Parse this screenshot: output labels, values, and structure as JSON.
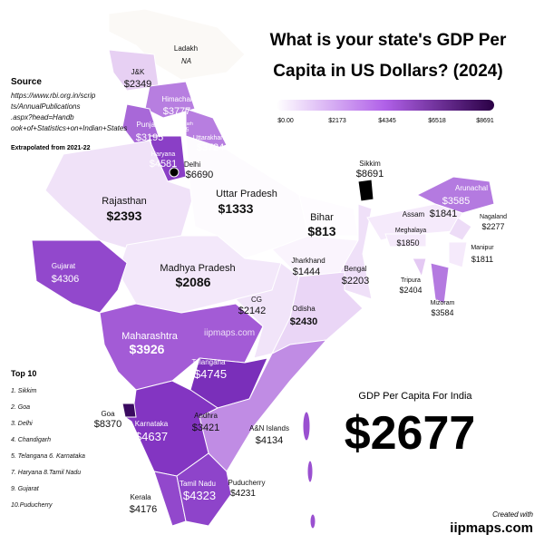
{
  "title": "What is your state's GDP Per Capita in US Dollars? (2024)",
  "legend": {
    "ticks": [
      "$0.00",
      "$2173",
      "$4345",
      "$6518",
      "$8691"
    ]
  },
  "source": {
    "heading": "Source",
    "url": "https://www.rbi.org.in/scripts/AnnualPublications.aspx?head=Handbook+of+Statistics+on+Indian+States",
    "note": "Extrapolated from 2021-22"
  },
  "top10": {
    "title": "Top 10",
    "items": [
      "1. Sikkim",
      "2. Goa",
      "3. Delhi",
      "4. Chandigarh",
      "5. Telangana 6. Karnataka",
      "7. Haryana 8.Tamil Nadu",
      "9. Gujarat",
      "10.Puducherry"
    ]
  },
  "national": {
    "label": "GDP Per Capita For India",
    "value": "$2677"
  },
  "watermark": "iipmaps.com",
  "credit": {
    "line1": "Created with",
    "line2": "iipmaps.com"
  },
  "states": [
    {
      "name": "Ladakh",
      "value": "NA"
    },
    {
      "name": "J&K",
      "value": "$2349"
    },
    {
      "name": "Himachal",
      "value": "$3777"
    },
    {
      "name": "Chandigarh",
      "value": "$5905"
    },
    {
      "name": "Punjab",
      "value": "$3195"
    },
    {
      "name": "Uttarakhand",
      "value": "$3724"
    },
    {
      "name": "Haryana",
      "value": "$4581"
    },
    {
      "name": "Delhi",
      "value": "$6690"
    },
    {
      "name": "Rajasthan",
      "value": "$2393"
    },
    {
      "name": "Uttar Pradesh",
      "value": "$1333"
    },
    {
      "name": "Bihar",
      "value": "$813"
    },
    {
      "name": "Sikkim",
      "value": "$8691"
    },
    {
      "name": "Arunachal",
      "value": "$3585"
    },
    {
      "name": "Assam",
      "value": "$1841"
    },
    {
      "name": "Nagaland",
      "value": "$2277"
    },
    {
      "name": "Meghalaya",
      "value": "$1850"
    },
    {
      "name": "Manipur",
      "value": "$1811"
    },
    {
      "name": "Tripura",
      "value": "$2404"
    },
    {
      "name": "Mizoram",
      "value": "$3584"
    },
    {
      "name": "Jharkhand",
      "value": "$1444"
    },
    {
      "name": "Bengal",
      "value": "$2203"
    },
    {
      "name": "Gujarat",
      "value": "$4306"
    },
    {
      "name": "Madhya Pradesh",
      "value": "$2086"
    },
    {
      "name": "CG",
      "value": "$2142"
    },
    {
      "name": "Odisha",
      "value": "$2430"
    },
    {
      "name": "Maharashtra",
      "value": "$3926"
    },
    {
      "name": "Telangana",
      "value": "$4745"
    },
    {
      "name": "Goa",
      "value": "$8370"
    },
    {
      "name": "Karnataka",
      "value": "$4637"
    },
    {
      "name": "Andhra",
      "value": "$3421"
    },
    {
      "name": "A&N Islands",
      "value": "$4134"
    },
    {
      "name": "Tamil Nadu",
      "value": "$4323"
    },
    {
      "name": "Puducherry",
      "value": "$4231"
    },
    {
      "name": "Kerala",
      "value": "$4176"
    }
  ]
}
